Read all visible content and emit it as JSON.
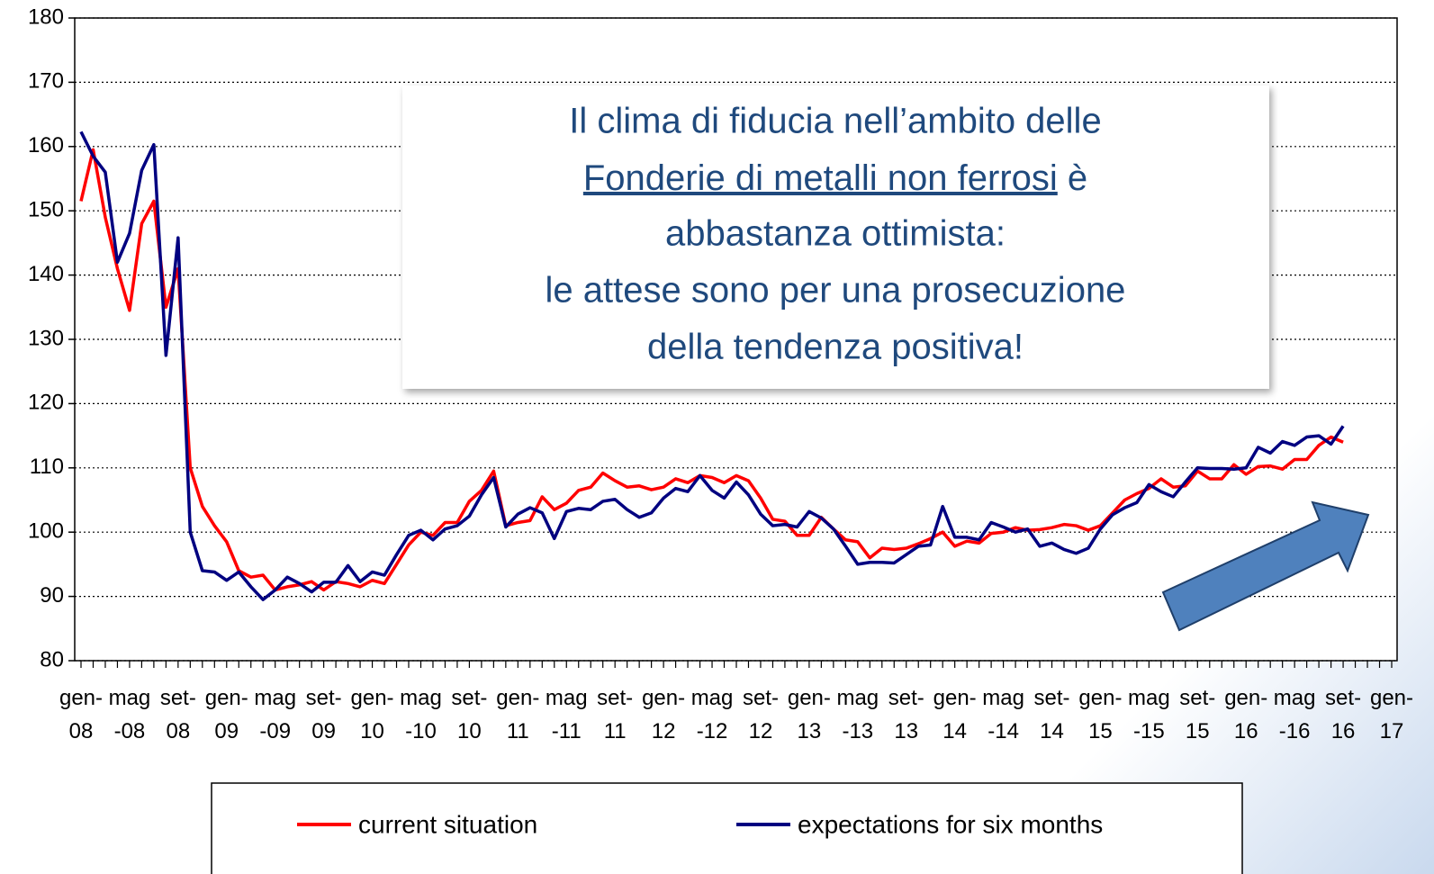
{
  "chart_data": {
    "type": "line",
    "annotation": [
      "Il clima di fiducia nell’ambito delle",
      "Fonderie di metalli non ferrosi",
      " è",
      "abbastanza ottimista:",
      "le attese sono per una prosecuzione",
      "della tendenza positiva!"
    ],
    "categories": [
      "gen-08",
      null,
      null,
      null,
      "mag-08",
      null,
      null,
      null,
      "set-08",
      null,
      null,
      null,
      "gen-09",
      null,
      null,
      null,
      "mag-09",
      null,
      null,
      null,
      "set-09",
      null,
      null,
      null,
      "gen-10",
      null,
      null,
      null,
      "mag-10",
      null,
      null,
      null,
      "set-10",
      null,
      null,
      null,
      "gen-11",
      null,
      null,
      null,
      "mag-11",
      null,
      null,
      null,
      "set-11",
      null,
      null,
      null,
      "gen-12",
      null,
      null,
      null,
      "mag-12",
      null,
      null,
      null,
      "set-12",
      null,
      null,
      null,
      "gen-13",
      null,
      null,
      null,
      "mag-13",
      null,
      null,
      null,
      "set-13",
      null,
      null,
      null,
      "gen-14",
      null,
      null,
      null,
      "mag-14",
      null,
      null,
      null,
      "set-14",
      null,
      null,
      null,
      "gen-15",
      null,
      null,
      null,
      "mag-15",
      null,
      null,
      null,
      "set-15",
      null,
      null,
      null,
      "gen-16",
      null,
      null,
      null,
      "mag-16",
      null,
      null,
      null,
      "set-16",
      null,
      null,
      null,
      "gen-17"
    ],
    "series": [
      {
        "name": "current situation",
        "color": "#ff0000",
        "values": [
          151.5,
          159.5,
          149,
          141,
          134.5,
          148,
          151.5,
          135,
          141,
          110,
          104,
          101,
          98.5,
          94,
          93,
          93.3,
          91,
          91.5,
          91.8,
          92.3,
          91,
          92.3,
          92,
          91.5,
          92.5,
          92,
          95,
          98,
          100,
          99.5,
          101.5,
          101.5,
          104.8,
          106.5,
          109.5,
          101,
          101.5,
          101.8,
          105.5,
          103.5,
          104.5,
          106.5,
          107,
          109.2,
          108,
          107,
          107.2,
          106.6,
          107,
          108.3,
          107.7,
          108.8,
          108.5,
          107.7,
          108.8,
          108,
          105.3,
          102,
          101.7,
          99.5,
          99.5,
          102.3,
          100.5,
          98.8,
          98.5,
          96,
          97.5,
          97.3,
          97.5,
          98.2,
          99,
          100,
          97.8,
          98.6,
          98.3,
          99.8,
          100,
          100.7,
          100.3,
          100.4,
          100.7,
          101.2,
          101,
          100.3,
          101,
          103,
          105,
          106,
          106.8,
          108.3,
          107,
          107.2,
          109.5,
          108.3,
          108.3,
          110.5,
          109,
          110.2,
          110.3,
          109.8,
          111.3,
          111.3,
          113.5,
          114.8,
          114,
          null,
          null,
          null,
          null
        ]
      },
      {
        "name": "expectations for six months",
        "color": "#000080",
        "values": [
          162.3,
          158.5,
          156,
          142,
          146.5,
          156.3,
          160.3,
          127.5,
          145.8,
          100,
          94,
          93.8,
          92.5,
          93.8,
          91.5,
          89.5,
          91,
          93,
          92,
          90.7,
          92.2,
          92.2,
          94.8,
          92.3,
          93.8,
          93.3,
          96.5,
          99.5,
          100.3,
          98.8,
          100.5,
          101,
          102.5,
          105.8,
          108.5,
          100.8,
          102.8,
          103.8,
          103,
          99,
          103.2,
          103.7,
          103.5,
          104.8,
          105.1,
          103.5,
          102.3,
          103,
          105.3,
          106.8,
          106.3,
          108.8,
          106.5,
          105.3,
          107.8,
          105.8,
          102.8,
          101,
          101.2,
          100.8,
          103.2,
          102.2,
          100.5,
          97.8,
          95,
          95.3,
          95.3,
          95.2,
          96.5,
          97.8,
          98,
          104,
          99.2,
          99.2,
          98.8,
          101.5,
          100.8,
          100,
          100.5,
          97.8,
          98.3,
          97.3,
          96.7,
          97.5,
          100.5,
          102.7,
          103.8,
          104.6,
          107.4,
          106.3,
          105.5,
          107.8,
          110,
          109.9,
          109.9,
          109.8,
          110,
          113.2,
          112.3,
          114.1,
          113.5,
          114.8,
          115,
          113.7,
          116.5,
          null,
          null,
          null,
          null
        ]
      }
    ],
    "ylim": [
      80,
      180
    ],
    "yticks": [
      80,
      90,
      100,
      110,
      120,
      130,
      140,
      150,
      160,
      170,
      180
    ],
    "grid": true
  }
}
